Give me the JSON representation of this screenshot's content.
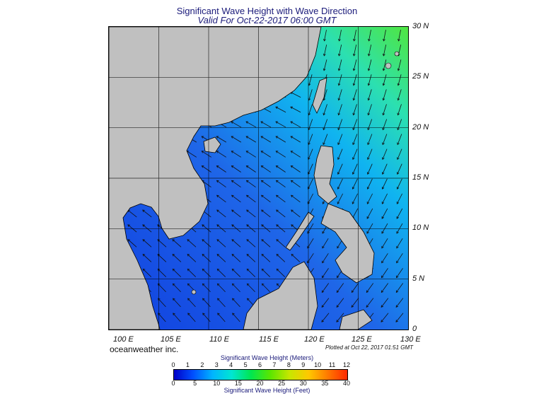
{
  "title": "Significant Wave Height with Wave Direction",
  "subtitle": "Valid For Oct-22-2017 06:00 GMT",
  "credit": "oceanweather inc.",
  "plotted": "Plotted at Oct 22, 2017 01:51 GMT",
  "lat_labels": [
    "30 N",
    "25 N",
    "20 N",
    "15 N",
    "10 N",
    "5 N",
    "0"
  ],
  "lon_labels": [
    "100 E",
    "105 E",
    "110 E",
    "115 E",
    "120 E",
    "125 E",
    "130 E"
  ],
  "colorbar": {
    "meters_title": "Significant Wave Height (Meters)",
    "feet_title": "Significant Wave Height (Feet)",
    "meters_ticks": [
      "0",
      "1",
      "2",
      "3",
      "4",
      "5",
      "6",
      "7",
      "8",
      "9",
      "10",
      "11",
      "12"
    ],
    "feet_ticks": [
      "0",
      "5",
      "10",
      "15",
      "20",
      "25",
      "30",
      "35",
      "40"
    ],
    "colors": [
      "#0000c8",
      "#0050ff",
      "#00b4ff",
      "#00e6d2",
      "#00e650",
      "#5ae600",
      "#c8e600",
      "#ffc800",
      "#ff7800",
      "#ff2800"
    ]
  },
  "colors": {
    "land": "#c0c0c0",
    "ocean_low": "#1f66e0",
    "ocean_high": "#3cd060",
    "arrow": "#111111"
  }
}
